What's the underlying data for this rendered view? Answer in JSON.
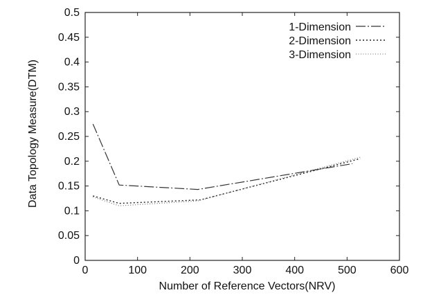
{
  "chart_data": {
    "type": "line",
    "title": "",
    "xlabel": "Number of Reference Vectors(NRV)",
    "ylabel": "Data Topology Measure(DTM)",
    "xlim": [
      0,
      600
    ],
    "ylim": [
      0,
      0.5
    ],
    "xticks": [
      "0",
      "100",
      "200",
      "300",
      "400",
      "500",
      "600"
    ],
    "yticks": [
      "0",
      "0.05",
      "0.1",
      "0.15",
      "0.2",
      "0.25",
      "0.3",
      "0.35",
      "0.4",
      "0.45",
      "0.5"
    ],
    "grid": false,
    "legend_position": "top-right",
    "series": [
      {
        "name": "1-Dimension",
        "style": "dash-dot",
        "x": [
          15,
          65,
          215,
          510
        ],
        "y": [
          0.275,
          0.152,
          0.143,
          0.195
        ]
      },
      {
        "name": "2-Dimension",
        "style": "dotted",
        "x": [
          15,
          65,
          220,
          525
        ],
        "y": [
          0.13,
          0.115,
          0.122,
          0.205
        ]
      },
      {
        "name": "3-Dimension",
        "style": "fine-dotted",
        "x": [
          15,
          65,
          215,
          525
        ],
        "y": [
          0.128,
          0.11,
          0.12,
          0.208
        ]
      }
    ]
  }
}
